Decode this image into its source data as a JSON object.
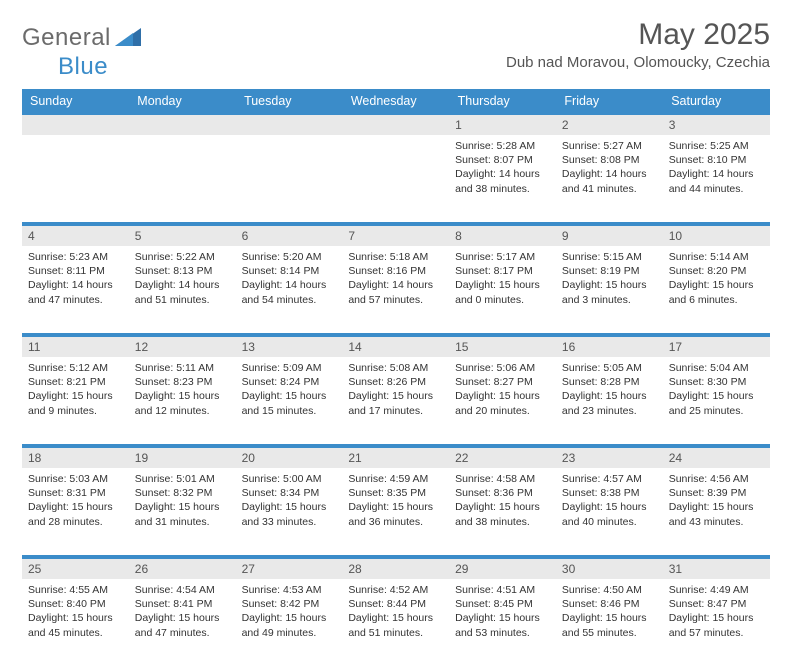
{
  "brand": {
    "general": "General",
    "blue": "Blue"
  },
  "title": "May 2025",
  "location": "Dub nad Moravou, Olomoucky, Czechia",
  "colors": {
    "header_bg": "#3b8cc9",
    "header_text": "#ffffff",
    "daynum_bg": "#e9e9e9",
    "text": "#333333",
    "muted": "#555555",
    "sep": "#3b8cc9",
    "background": "#ffffff"
  },
  "typography": {
    "title_fontsize": 30,
    "location_fontsize": 15,
    "dayheader_fontsize": 12.5,
    "daynum_fontsize": 12,
    "body_fontsize": 10.5,
    "logo_fontsize": 24
  },
  "day_headers": [
    "Sunday",
    "Monday",
    "Tuesday",
    "Wednesday",
    "Thursday",
    "Friday",
    "Saturday"
  ],
  "weeks": [
    [
      {
        "day": "",
        "sunrise": "",
        "sunset": "",
        "daylight": ""
      },
      {
        "day": "",
        "sunrise": "",
        "sunset": "",
        "daylight": ""
      },
      {
        "day": "",
        "sunrise": "",
        "sunset": "",
        "daylight": ""
      },
      {
        "day": "",
        "sunrise": "",
        "sunset": "",
        "daylight": ""
      },
      {
        "day": "1",
        "sunrise": "Sunrise: 5:28 AM",
        "sunset": "Sunset: 8:07 PM",
        "daylight": "Daylight: 14 hours and 38 minutes."
      },
      {
        "day": "2",
        "sunrise": "Sunrise: 5:27 AM",
        "sunset": "Sunset: 8:08 PM",
        "daylight": "Daylight: 14 hours and 41 minutes."
      },
      {
        "day": "3",
        "sunrise": "Sunrise: 5:25 AM",
        "sunset": "Sunset: 8:10 PM",
        "daylight": "Daylight: 14 hours and 44 minutes."
      }
    ],
    [
      {
        "day": "4",
        "sunrise": "Sunrise: 5:23 AM",
        "sunset": "Sunset: 8:11 PM",
        "daylight": "Daylight: 14 hours and 47 minutes."
      },
      {
        "day": "5",
        "sunrise": "Sunrise: 5:22 AM",
        "sunset": "Sunset: 8:13 PM",
        "daylight": "Daylight: 14 hours and 51 minutes."
      },
      {
        "day": "6",
        "sunrise": "Sunrise: 5:20 AM",
        "sunset": "Sunset: 8:14 PM",
        "daylight": "Daylight: 14 hours and 54 minutes."
      },
      {
        "day": "7",
        "sunrise": "Sunrise: 5:18 AM",
        "sunset": "Sunset: 8:16 PM",
        "daylight": "Daylight: 14 hours and 57 minutes."
      },
      {
        "day": "8",
        "sunrise": "Sunrise: 5:17 AM",
        "sunset": "Sunset: 8:17 PM",
        "daylight": "Daylight: 15 hours and 0 minutes."
      },
      {
        "day": "9",
        "sunrise": "Sunrise: 5:15 AM",
        "sunset": "Sunset: 8:19 PM",
        "daylight": "Daylight: 15 hours and 3 minutes."
      },
      {
        "day": "10",
        "sunrise": "Sunrise: 5:14 AM",
        "sunset": "Sunset: 8:20 PM",
        "daylight": "Daylight: 15 hours and 6 minutes."
      }
    ],
    [
      {
        "day": "11",
        "sunrise": "Sunrise: 5:12 AM",
        "sunset": "Sunset: 8:21 PM",
        "daylight": "Daylight: 15 hours and 9 minutes."
      },
      {
        "day": "12",
        "sunrise": "Sunrise: 5:11 AM",
        "sunset": "Sunset: 8:23 PM",
        "daylight": "Daylight: 15 hours and 12 minutes."
      },
      {
        "day": "13",
        "sunrise": "Sunrise: 5:09 AM",
        "sunset": "Sunset: 8:24 PM",
        "daylight": "Daylight: 15 hours and 15 minutes."
      },
      {
        "day": "14",
        "sunrise": "Sunrise: 5:08 AM",
        "sunset": "Sunset: 8:26 PM",
        "daylight": "Daylight: 15 hours and 17 minutes."
      },
      {
        "day": "15",
        "sunrise": "Sunrise: 5:06 AM",
        "sunset": "Sunset: 8:27 PM",
        "daylight": "Daylight: 15 hours and 20 minutes."
      },
      {
        "day": "16",
        "sunrise": "Sunrise: 5:05 AM",
        "sunset": "Sunset: 8:28 PM",
        "daylight": "Daylight: 15 hours and 23 minutes."
      },
      {
        "day": "17",
        "sunrise": "Sunrise: 5:04 AM",
        "sunset": "Sunset: 8:30 PM",
        "daylight": "Daylight: 15 hours and 25 minutes."
      }
    ],
    [
      {
        "day": "18",
        "sunrise": "Sunrise: 5:03 AM",
        "sunset": "Sunset: 8:31 PM",
        "daylight": "Daylight: 15 hours and 28 minutes."
      },
      {
        "day": "19",
        "sunrise": "Sunrise: 5:01 AM",
        "sunset": "Sunset: 8:32 PM",
        "daylight": "Daylight: 15 hours and 31 minutes."
      },
      {
        "day": "20",
        "sunrise": "Sunrise: 5:00 AM",
        "sunset": "Sunset: 8:34 PM",
        "daylight": "Daylight: 15 hours and 33 minutes."
      },
      {
        "day": "21",
        "sunrise": "Sunrise: 4:59 AM",
        "sunset": "Sunset: 8:35 PM",
        "daylight": "Daylight: 15 hours and 36 minutes."
      },
      {
        "day": "22",
        "sunrise": "Sunrise: 4:58 AM",
        "sunset": "Sunset: 8:36 PM",
        "daylight": "Daylight: 15 hours and 38 minutes."
      },
      {
        "day": "23",
        "sunrise": "Sunrise: 4:57 AM",
        "sunset": "Sunset: 8:38 PM",
        "daylight": "Daylight: 15 hours and 40 minutes."
      },
      {
        "day": "24",
        "sunrise": "Sunrise: 4:56 AM",
        "sunset": "Sunset: 8:39 PM",
        "daylight": "Daylight: 15 hours and 43 minutes."
      }
    ],
    [
      {
        "day": "25",
        "sunrise": "Sunrise: 4:55 AM",
        "sunset": "Sunset: 8:40 PM",
        "daylight": "Daylight: 15 hours and 45 minutes."
      },
      {
        "day": "26",
        "sunrise": "Sunrise: 4:54 AM",
        "sunset": "Sunset: 8:41 PM",
        "daylight": "Daylight: 15 hours and 47 minutes."
      },
      {
        "day": "27",
        "sunrise": "Sunrise: 4:53 AM",
        "sunset": "Sunset: 8:42 PM",
        "daylight": "Daylight: 15 hours and 49 minutes."
      },
      {
        "day": "28",
        "sunrise": "Sunrise: 4:52 AM",
        "sunset": "Sunset: 8:44 PM",
        "daylight": "Daylight: 15 hours and 51 minutes."
      },
      {
        "day": "29",
        "sunrise": "Sunrise: 4:51 AM",
        "sunset": "Sunset: 8:45 PM",
        "daylight": "Daylight: 15 hours and 53 minutes."
      },
      {
        "day": "30",
        "sunrise": "Sunrise: 4:50 AM",
        "sunset": "Sunset: 8:46 PM",
        "daylight": "Daylight: 15 hours and 55 minutes."
      },
      {
        "day": "31",
        "sunrise": "Sunrise: 4:49 AM",
        "sunset": "Sunset: 8:47 PM",
        "daylight": "Daylight: 15 hours and 57 minutes."
      }
    ]
  ]
}
